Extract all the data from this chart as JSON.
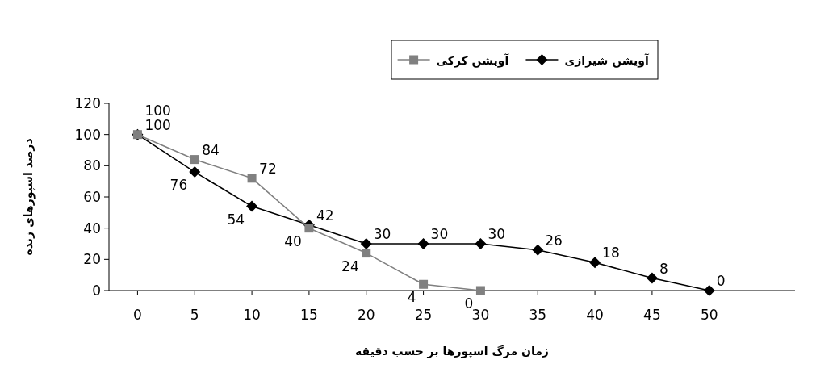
{
  "chart_data": {
    "type": "line",
    "xlabel": "زمان مرگ اسپورها بر حسب دقیقه",
    "ylabel": "درصد اسپورهای زنده",
    "xlim": [
      -2.5,
      57.5
    ],
    "xticks": [
      0,
      5,
      10,
      15,
      20,
      25,
      30,
      35,
      40,
      45,
      50
    ],
    "ylim": [
      0,
      120
    ],
    "yticks": [
      0,
      20,
      40,
      60,
      80,
      100,
      120
    ],
    "grid": false,
    "legend": "top",
    "data_labels": true,
    "series": [
      {
        "name": "آویشن شیرازی",
        "color": "#000000",
        "marker": "diamond",
        "x": [
          0,
          5,
          10,
          15,
          20,
          25,
          30,
          35,
          40,
          45,
          50
        ],
        "values": [
          100,
          76,
          54,
          42,
          30,
          30,
          30,
          26,
          18,
          8,
          0
        ]
      },
      {
        "name": "آویشن کرکی",
        "color": "#808080",
        "marker": "square",
        "x": [
          0,
          5,
          10,
          15,
          20,
          25,
          30
        ],
        "values": [
          100,
          84,
          72,
          40,
          24,
          4,
          0
        ]
      }
    ]
  }
}
